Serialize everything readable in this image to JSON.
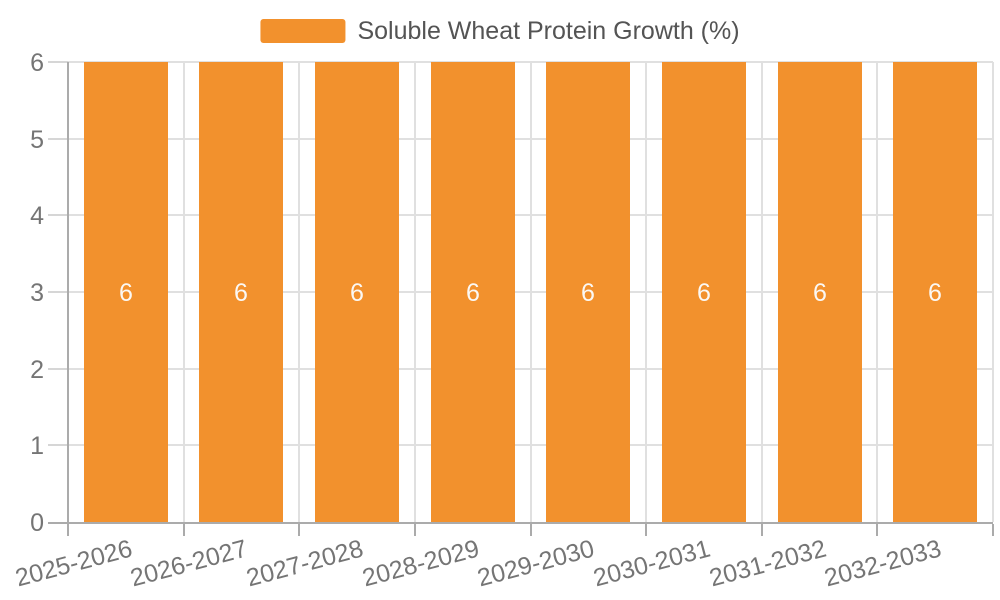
{
  "chart_data": {
    "type": "bar",
    "title": "Soluble Wheat Protein Growth (%)",
    "legend": {
      "label": "Soluble Wheat Protein Growth (%)",
      "position": "top-center"
    },
    "categories": [
      "2025-2026",
      "2026-2027",
      "2027-2028",
      "2028-2029",
      "2029-2030",
      "2030-2031",
      "2031-2032",
      "2032-2033"
    ],
    "values": [
      6,
      6,
      6,
      6,
      6,
      6,
      6,
      6
    ],
    "bar_labels": [
      "6",
      "6",
      "6",
      "6",
      "6",
      "6",
      "6",
      "6"
    ],
    "bar_label_position": "inside-center",
    "xlabel": "",
    "ylabel": "",
    "ylim": [
      0,
      6
    ],
    "yticks": [
      0,
      1,
      2,
      3,
      4,
      5,
      6
    ],
    "grid": true,
    "x_label_rotation_deg": -15,
    "colors": {
      "bar": "#F2912D",
      "bar_label": "#FBF8F4",
      "axis_line": "#ABABAB",
      "grid_line": "#E0E0E0",
      "y_tick_line": "#D6D6D6",
      "axis_label": "#757575",
      "legend_text": "#545454",
      "background": "#FFFFFF"
    }
  }
}
